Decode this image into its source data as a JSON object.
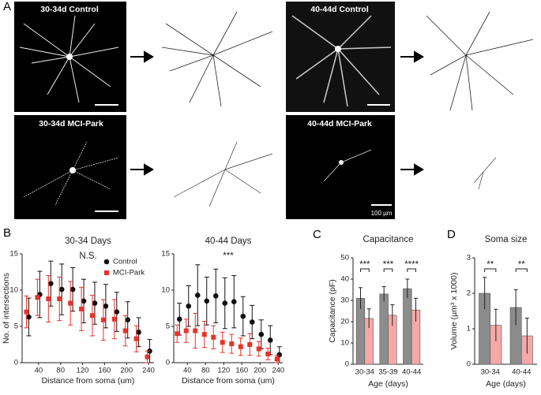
{
  "panel_a": {
    "letter": "A",
    "images": [
      "30-34d Control",
      "40-44d Control",
      "30-34d MCI-Park",
      "40-44d MCI-Park"
    ],
    "scale_label": "100 µm"
  },
  "chart_data": [
    {
      "type": "line",
      "panel_label": "B",
      "title": "30-34 Days",
      "annotation": "N.S.",
      "x_label": "Distance from soma (um)",
      "y_label": "No. of intersections",
      "x": [
        20,
        40,
        60,
        80,
        100,
        120,
        140,
        160,
        180,
        200,
        220,
        240
      ],
      "xlim": [
        10,
        250
      ],
      "xticks": [
        40,
        80,
        120,
        160,
        200,
        240
      ],
      "ylim": [
        0,
        15
      ],
      "yticks": [
        0,
        5,
        10,
        15
      ],
      "legend": "upper right",
      "series": [
        {
          "name": "Control",
          "color": "#111111",
          "marker": "circle",
          "values": [
            6.3,
            9.4,
            10.9,
            10.1,
            10.1,
            8.5,
            8.2,
            7.8,
            7.0,
            5.9,
            4.2,
            1.6
          ],
          "errors": [
            2.6,
            3.2,
            3.1,
            3.5,
            3.0,
            3.0,
            2.9,
            3.0,
            2.7,
            2.5,
            2.0,
            1.6
          ]
        },
        {
          "name": "MCI-Park",
          "color": "#e8332a",
          "marker": "square",
          "values": [
            7.0,
            9.0,
            8.8,
            8.8,
            8.2,
            7.4,
            6.5,
            5.9,
            6.0,
            4.4,
            3.3,
            0.8
          ],
          "errors": [
            2.2,
            2.5,
            3.2,
            3.0,
            3.0,
            3.0,
            2.8,
            2.8,
            2.7,
            2.1,
            1.8,
            0.8
          ]
        }
      ]
    },
    {
      "type": "line",
      "title": "40-44 Days",
      "annotation": "***",
      "x_label": "Distance from soma (um)",
      "x": [
        20,
        40,
        60,
        80,
        100,
        120,
        140,
        160,
        180,
        200,
        220,
        240
      ],
      "xlim": [
        10,
        250
      ],
      "xticks": [
        40,
        80,
        120,
        160,
        200,
        240
      ],
      "ylim": [
        0,
        15
      ],
      "yticks": [
        0,
        5,
        10,
        15
      ],
      "series": [
        {
          "color": "#111111",
          "marker": "circle",
          "values": [
            6.0,
            7.8,
            9.3,
            8.5,
            9.2,
            8.2,
            8.4,
            6.4,
            5.6,
            3.9,
            3.1,
            1.1
          ],
          "errors": [
            2.2,
            2.8,
            4.2,
            3.3,
            3.7,
            3.5,
            3.6,
            2.7,
            2.3,
            2.0,
            2.0,
            1.1
          ]
        },
        {
          "color": "#e8332a",
          "marker": "square",
          "values": [
            4.0,
            4.4,
            4.4,
            3.9,
            3.5,
            2.8,
            2.6,
            2.2,
            2.5,
            1.9,
            1.2,
            0.5
          ],
          "errors": [
            1.2,
            1.6,
            2.4,
            1.8,
            1.6,
            1.4,
            1.3,
            1.2,
            1.5,
            1.0,
            0.8,
            0.5
          ]
        }
      ]
    },
    {
      "type": "bar",
      "panel_label": "C",
      "title": "Capacitance",
      "x_label": "Age (days)",
      "y_label": "Capacitance (pF)",
      "categories": [
        "30-34",
        "35-39",
        "40-44"
      ],
      "ylim": [
        0,
        50
      ],
      "yticks": [
        0,
        10,
        20,
        30,
        40,
        50
      ],
      "significance": [
        "***",
        "***",
        "****"
      ],
      "series": [
        {
          "color": "#8c8c8c",
          "values": [
            31,
            33,
            35.5
          ],
          "errors": [
            5,
            3.5,
            4.5
          ]
        },
        {
          "color": "#f4a9a8",
          "values": [
            21.5,
            23,
            25.5
          ],
          "errors": [
            4.5,
            5,
            5.5
          ]
        }
      ]
    },
    {
      "type": "bar",
      "panel_label": "D",
      "title": "Soma size",
      "x_label": "Age (days)",
      "y_label": "Volume (µm³ x 1000)",
      "categories": [
        "30-34",
        "40-44"
      ],
      "ylim": [
        0,
        3
      ],
      "yticks": [
        0,
        1,
        2,
        3
      ],
      "significance": [
        "**",
        "**"
      ],
      "series": [
        {
          "color": "#8c8c8c",
          "values": [
            2.0,
            1.6
          ],
          "errors": [
            0.45,
            0.5
          ]
        },
        {
          "color": "#f4a9a8",
          "values": [
            1.1,
            0.8
          ],
          "errors": [
            0.45,
            0.5
          ]
        }
      ]
    }
  ]
}
